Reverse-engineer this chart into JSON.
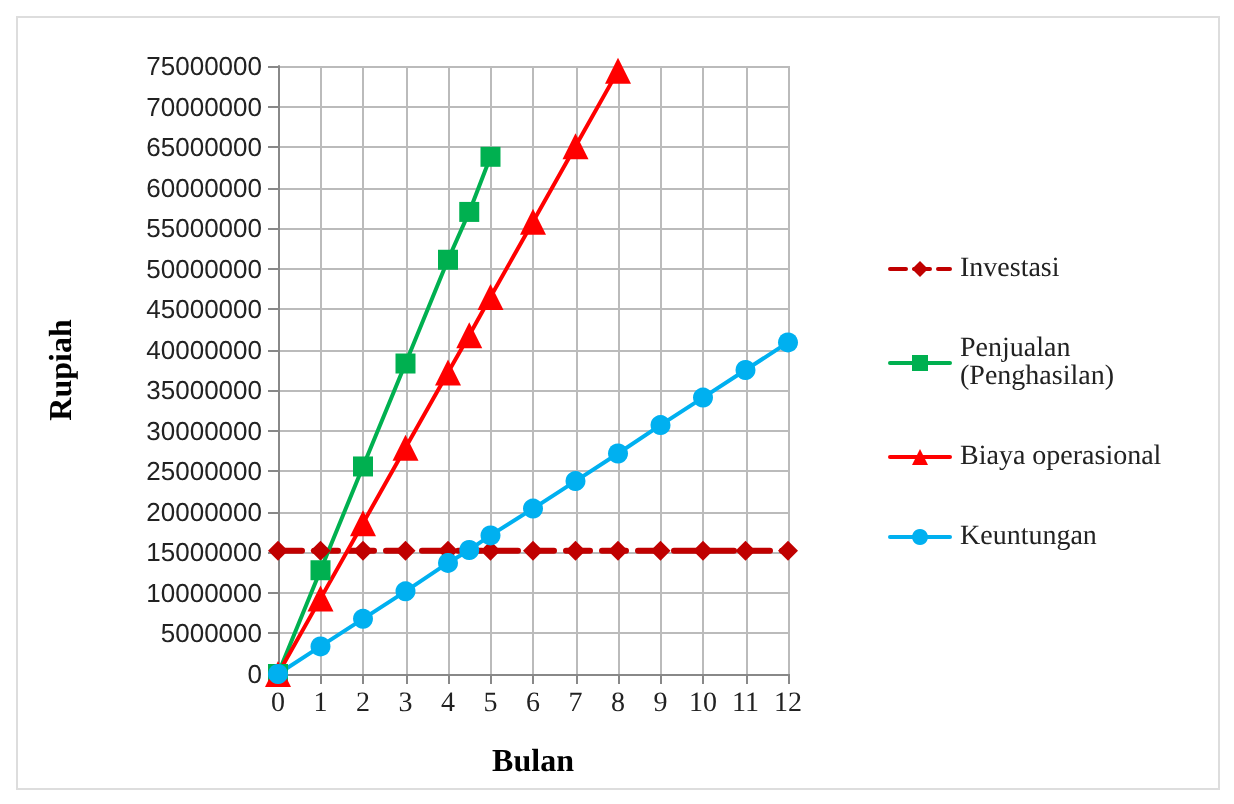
{
  "chart_data": {
    "type": "line",
    "xlabel": "Bulan",
    "ylabel": "Rupiah",
    "xlim": [
      0,
      12
    ],
    "xticks": [
      0,
      1,
      2,
      3,
      4,
      5,
      6,
      7,
      8,
      9,
      10,
      11,
      12
    ],
    "ylim": [
      0,
      75000000
    ],
    "yticks": [
      0,
      5000000,
      10000000,
      15000000,
      20000000,
      25000000,
      30000000,
      35000000,
      40000000,
      45000000,
      50000000,
      55000000,
      60000000,
      65000000,
      70000000,
      75000000
    ],
    "grid": true,
    "legend": "right",
    "series": [
      {
        "name": "Investasi",
        "color": "#c00000",
        "marker": "diamond",
        "line_style": "dashed",
        "x": [
          0,
          1,
          2,
          3,
          4,
          5,
          6,
          7,
          8,
          9,
          10,
          11,
          12
        ],
        "values": [
          15200000,
          15200000,
          15200000,
          15200000,
          15200000,
          15200000,
          15200000,
          15200000,
          15200000,
          15200000,
          15200000,
          15200000,
          15200000
        ]
      },
      {
        "name": "Penjualan (Penghasilan)",
        "color": "#00b050",
        "marker": "square",
        "line_style": "solid",
        "x": [
          0,
          1,
          2,
          3,
          4,
          4.5,
          5
        ],
        "values": [
          0,
          12800000,
          25600000,
          38300000,
          51100000,
          57000000,
          63800000
        ]
      },
      {
        "name": "Biaya operasional",
        "color": "#ff0000",
        "marker": "triangle",
        "line_style": "solid",
        "x": [
          0,
          1,
          2,
          3,
          4,
          4.5,
          5,
          6,
          7,
          8
        ],
        "values": [
          0,
          9300000,
          18600000,
          27900000,
          37200000,
          41800000,
          46500000,
          55800000,
          65100000,
          74400000
        ]
      },
      {
        "name": "Keuntungan",
        "color": "#00b0f0",
        "marker": "circle",
        "line_style": "solid",
        "x": [
          0,
          1,
          2,
          3,
          4,
          4.5,
          5,
          6,
          7,
          8,
          9,
          10,
          11,
          12
        ],
        "values": [
          0,
          3400000,
          6800000,
          10200000,
          13700000,
          15300000,
          17100000,
          20400000,
          23800000,
          27200000,
          30700000,
          34100000,
          37500000,
          40900000
        ]
      }
    ]
  }
}
